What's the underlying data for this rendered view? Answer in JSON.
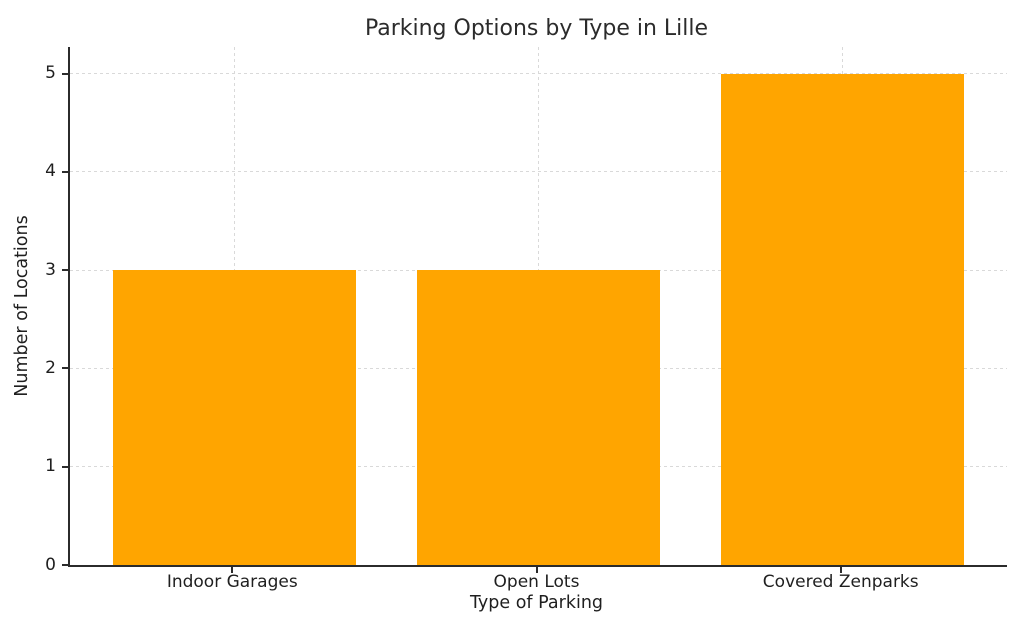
{
  "chart_data": {
    "type": "bar",
    "title": "Parking Options by Type in Lille",
    "xlabel": "Type of Parking",
    "ylabel": "Number of Locations",
    "categories": [
      "Indoor Garages",
      "Open Lots",
      "Covered Zenparks"
    ],
    "values": [
      3,
      3,
      5
    ],
    "yticks": [
      0,
      1,
      2,
      3,
      4,
      5
    ],
    "ylim": [
      0,
      5.27
    ],
    "xlim": [
      -0.54,
      2.54
    ],
    "bar_width_units": 0.8,
    "grid": "both, dashed",
    "legend": "none",
    "spines": "left and bottom only",
    "colors": {
      "bar": "#FFA500",
      "grid": "#d9d9d9",
      "spine": "#2b2b2b",
      "text": "#1f1f1f",
      "background": "#ffffff"
    }
  }
}
